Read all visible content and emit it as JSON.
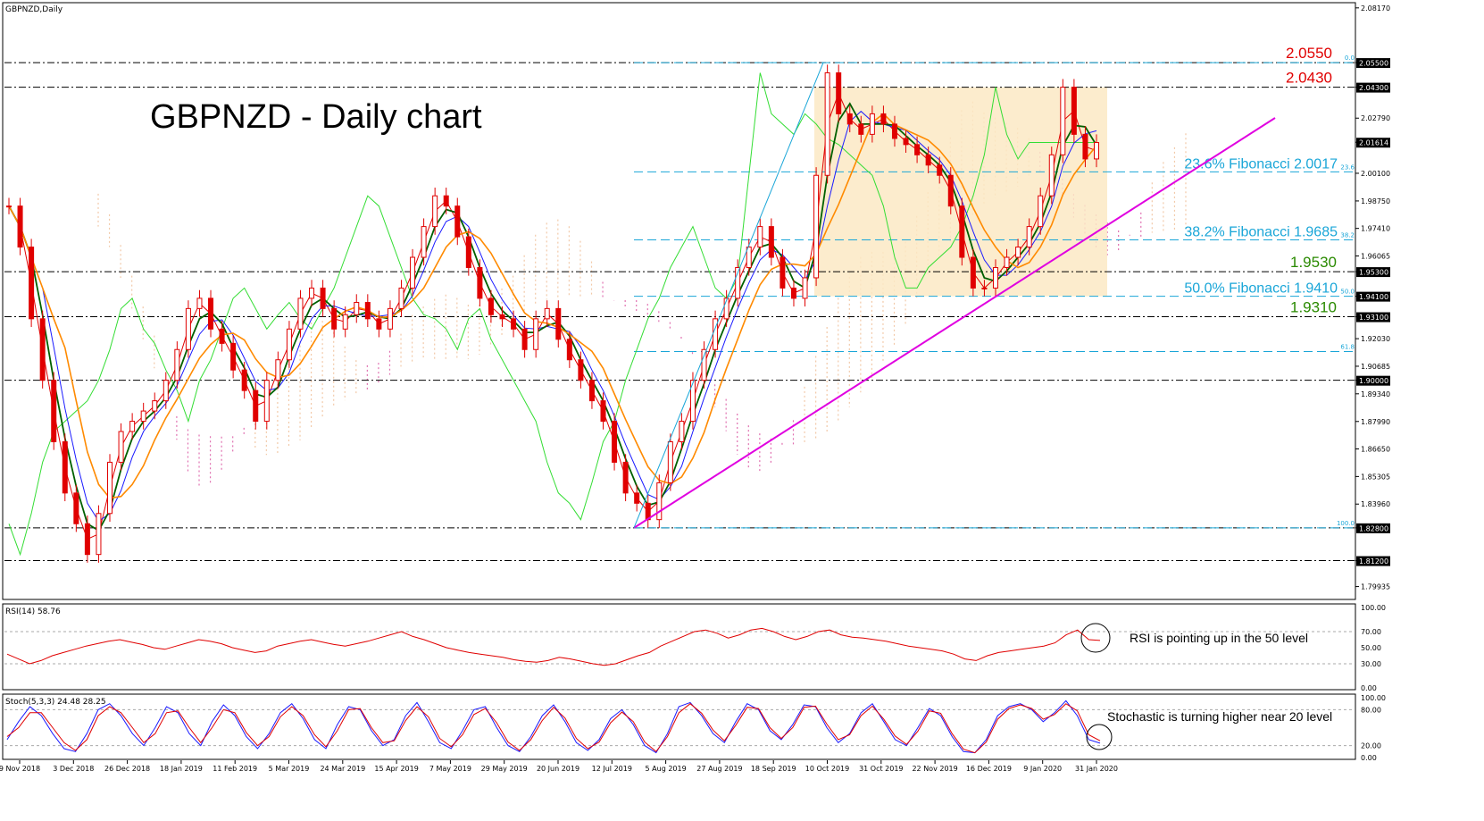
{
  "window": {
    "symbol_label": "GBPNZD,Daily",
    "title": "GBPNZD - Daily chart"
  },
  "colors": {
    "candle": "#e00000",
    "price_tag_bg": "#000000",
    "level_red": "#e00000",
    "level_green": "#2a8a00",
    "fib": "#1aa6d8",
    "trendline": "#e000e0",
    "box_fill": "#fbe9c4",
    "tenkan": "#1a1aff",
    "kijun": "#e00000",
    "sma_fast": "#006000",
    "sma_slow": "#ff8a00",
    "chikou": "#33dd33",
    "cloud_pink": "#e070b0",
    "cloud_peach": "#f2c9a8",
    "rsi_line": "#e00000",
    "stoch_main": "#1a1aff",
    "stoch_signal": "#e00000",
    "note_circle": "#000000"
  },
  "chart_data": [
    {
      "type": "line",
      "panel": "price",
      "y_axis_ticks": [
        "2.08170",
        "2.05500",
        "2.04300",
        "2.02790",
        "2.01614",
        "2.00100",
        "1.98750",
        "1.97410",
        "1.96065",
        "1.95300",
        "1.94100",
        "1.93100",
        "1.92030",
        "1.90685",
        "1.90000",
        "1.89340",
        "1.87990",
        "1.86650",
        "1.85305",
        "1.83960",
        "1.82800",
        "1.81200",
        "1.79935"
      ],
      "price_tags": [
        "2.05500",
        "2.04300",
        "2.01614",
        "1.95300",
        "1.94100",
        "1.93100",
        "1.90000",
        "1.82800",
        "1.81200"
      ],
      "x_tick_labels": [
        "9 Nov 2018",
        "3 Dec 2018",
        "26 Dec 2018",
        "18 Jan 2019",
        "11 Feb 2019",
        "5 Mar 2019",
        "24 Mar 2019",
        "15 Apr 2019",
        "7 May 2019",
        "29 May 2019",
        "20 Jun 2019",
        "12 Jul 2019",
        "5 Aug 2019",
        "27 Aug 2019",
        "18 Sep 2019",
        "10 Oct 2019",
        "31 Oct 2019",
        "22 Nov 2019",
        "16 Dec 2019",
        "9 Jan 2020",
        "31 Jan 2020"
      ],
      "ylim": [
        1.7935,
        2.0838
      ],
      "horizontal_levels": [
        {
          "value": 2.055,
          "label": "2.0550",
          "color": "red"
        },
        {
          "value": 2.043,
          "label": "2.0430",
          "color": "red"
        },
        {
          "value": 1.953,
          "label": "1.9530",
          "color": "green"
        },
        {
          "value": 1.931,
          "label": "1.9310",
          "color": "green"
        },
        {
          "value": 1.9,
          "label": "",
          "color": "none"
        },
        {
          "value": 1.828,
          "label": "",
          "color": "none"
        },
        {
          "value": 1.812,
          "label": "",
          "color": "none"
        }
      ],
      "fibonacci": [
        {
          "ratio": "0.0",
          "value": 2.055,
          "label": ""
        },
        {
          "ratio": "23.6",
          "value": 2.0017,
          "label": "23.6% Fibonacci 2.0017"
        },
        {
          "ratio": "38.2",
          "value": 1.9685,
          "label": "38.2% Fibonacci 1.9685"
        },
        {
          "ratio": "50.0",
          "value": 1.941,
          "label": "50.0% Fibonacci 1.9410"
        },
        {
          "ratio": "61.8",
          "value": 1.914,
          "label": ""
        },
        {
          "ratio": "100.0",
          "value": 1.828,
          "label": ""
        }
      ],
      "series": [
        {
          "values": [
            1.985,
            1.965,
            1.93,
            1.9,
            1.87,
            1.845,
            1.83,
            1.815,
            1.835,
            1.86,
            1.875,
            1.88,
            1.885,
            1.89,
            1.9,
            1.915,
            1.935,
            1.94,
            1.925,
            1.918,
            1.905,
            1.895,
            1.88,
            1.9,
            1.91,
            1.925,
            1.94,
            1.945,
            1.935,
            1.925,
            1.932,
            1.938,
            1.93,
            1.925,
            1.935,
            1.945,
            1.96,
            1.975,
            1.99,
            1.985,
            1.97,
            1.955,
            1.94,
            1.932,
            1.93,
            1.925,
            1.915,
            1.93,
            1.935,
            1.92,
            1.91,
            1.9,
            1.89,
            1.88,
            1.86,
            1.845,
            1.84,
            1.832,
            1.85,
            1.87,
            1.88,
            1.9,
            1.915,
            1.93,
            1.94,
            1.955,
            1.965,
            1.975,
            1.96,
            1.945,
            1.94,
            1.95,
            2.0,
            2.05,
            2.03,
            2.025,
            2.02,
            2.03,
            2.025,
            2.018,
            2.015,
            2.01,
            2.005,
            2.0,
            1.985,
            1.96,
            1.945,
            1.945,
            1.955,
            1.96,
            1.965,
            1.975,
            1.99,
            2.01,
            2.043,
            2.02,
            2.008,
            2.016
          ]
        }
      ],
      "price_range_box": {
        "top": 2.043,
        "bottom": 1.941
      },
      "trendline": {
        "from": 1.828,
        "to": 2.028
      }
    },
    {
      "type": "line",
      "panel": "indicator",
      "title": "RSI(14) 58.76",
      "ylim": [
        0,
        100
      ],
      "y_tick_labels": [
        "100.00",
        "70.00",
        "50.00",
        "30.00",
        "0.00"
      ],
      "series": [
        {
          "values": [
            42,
            36,
            30,
            34,
            40,
            44,
            48,
            52,
            55,
            58,
            60,
            57,
            54,
            50,
            48,
            52,
            56,
            60,
            58,
            55,
            50,
            47,
            44,
            46,
            52,
            55,
            58,
            60,
            57,
            54,
            52,
            55,
            58,
            62,
            66,
            70,
            64,
            60,
            55,
            50,
            47,
            44,
            42,
            40,
            38,
            35,
            33,
            32,
            34,
            38,
            36,
            33,
            30,
            28,
            30,
            35,
            40,
            44,
            52,
            58,
            64,
            70,
            72,
            68,
            62,
            66,
            72,
            74,
            70,
            64,
            60,
            64,
            70,
            72,
            66,
            63,
            62,
            60,
            58,
            55,
            52,
            50,
            48,
            46,
            42,
            36,
            34,
            40,
            44,
            46,
            48,
            50,
            52,
            56,
            66,
            72,
            60,
            59
          ]
        }
      ],
      "annotation": "RSI is pointing up in the 50 level"
    },
    {
      "type": "line",
      "panel": "indicator",
      "title": "Stoch(5,3,3) 24.48 28.25",
      "ylim": [
        0,
        100
      ],
      "y_tick_labels": [
        "100.00",
        "80.00",
        "20.00",
        "0.00"
      ],
      "series": [
        {
          "values": [
            30,
            60,
            85,
            70,
            40,
            15,
            10,
            40,
            80,
            90,
            70,
            40,
            20,
            50,
            85,
            75,
            40,
            20,
            60,
            88,
            70,
            35,
            15,
            40,
            75,
            90,
            65,
            30,
            15,
            55,
            85,
            80,
            45,
            20,
            30,
            70,
            92,
            60,
            25,
            15,
            45,
            80,
            85,
            50,
            20,
            10,
            35,
            70,
            88,
            60,
            25,
            12,
            30,
            65,
            80,
            55,
            20,
            8,
            40,
            85,
            92,
            70,
            40,
            25,
            60,
            90,
            80,
            45,
            30,
            55,
            88,
            85,
            50,
            25,
            40,
            75,
            90,
            60,
            30,
            20,
            50,
            82,
            70,
            35,
            10,
            8,
            30,
            70,
            85,
            90,
            80,
            60,
            75,
            95,
            70,
            30,
            24
          ]
        },
        {
          "values": [
            35,
            50,
            75,
            75,
            50,
            25,
            12,
            30,
            70,
            85,
            75,
            50,
            25,
            40,
            75,
            78,
            50,
            25,
            50,
            80,
            75,
            42,
            20,
            35,
            68,
            85,
            70,
            38,
            18,
            45,
            80,
            82,
            50,
            25,
            28,
            62,
            85,
            68,
            32,
            18,
            38,
            72,
            82,
            58,
            26,
            12,
            30,
            62,
            84,
            66,
            32,
            15,
            26,
            58,
            76,
            60,
            26,
            10,
            35,
            75,
            90,
            74,
            46,
            28,
            54,
            84,
            82,
            50,
            32,
            50,
            84,
            86,
            56,
            30,
            38,
            70,
            86,
            64,
            36,
            22,
            44,
            78,
            74,
            40,
            14,
            8,
            26,
            64,
            82,
            88,
            82,
            64,
            72,
            90,
            78,
            38,
            28
          ]
        }
      ],
      "annotation": "Stochastic is turning higher near 20 level"
    }
  ]
}
